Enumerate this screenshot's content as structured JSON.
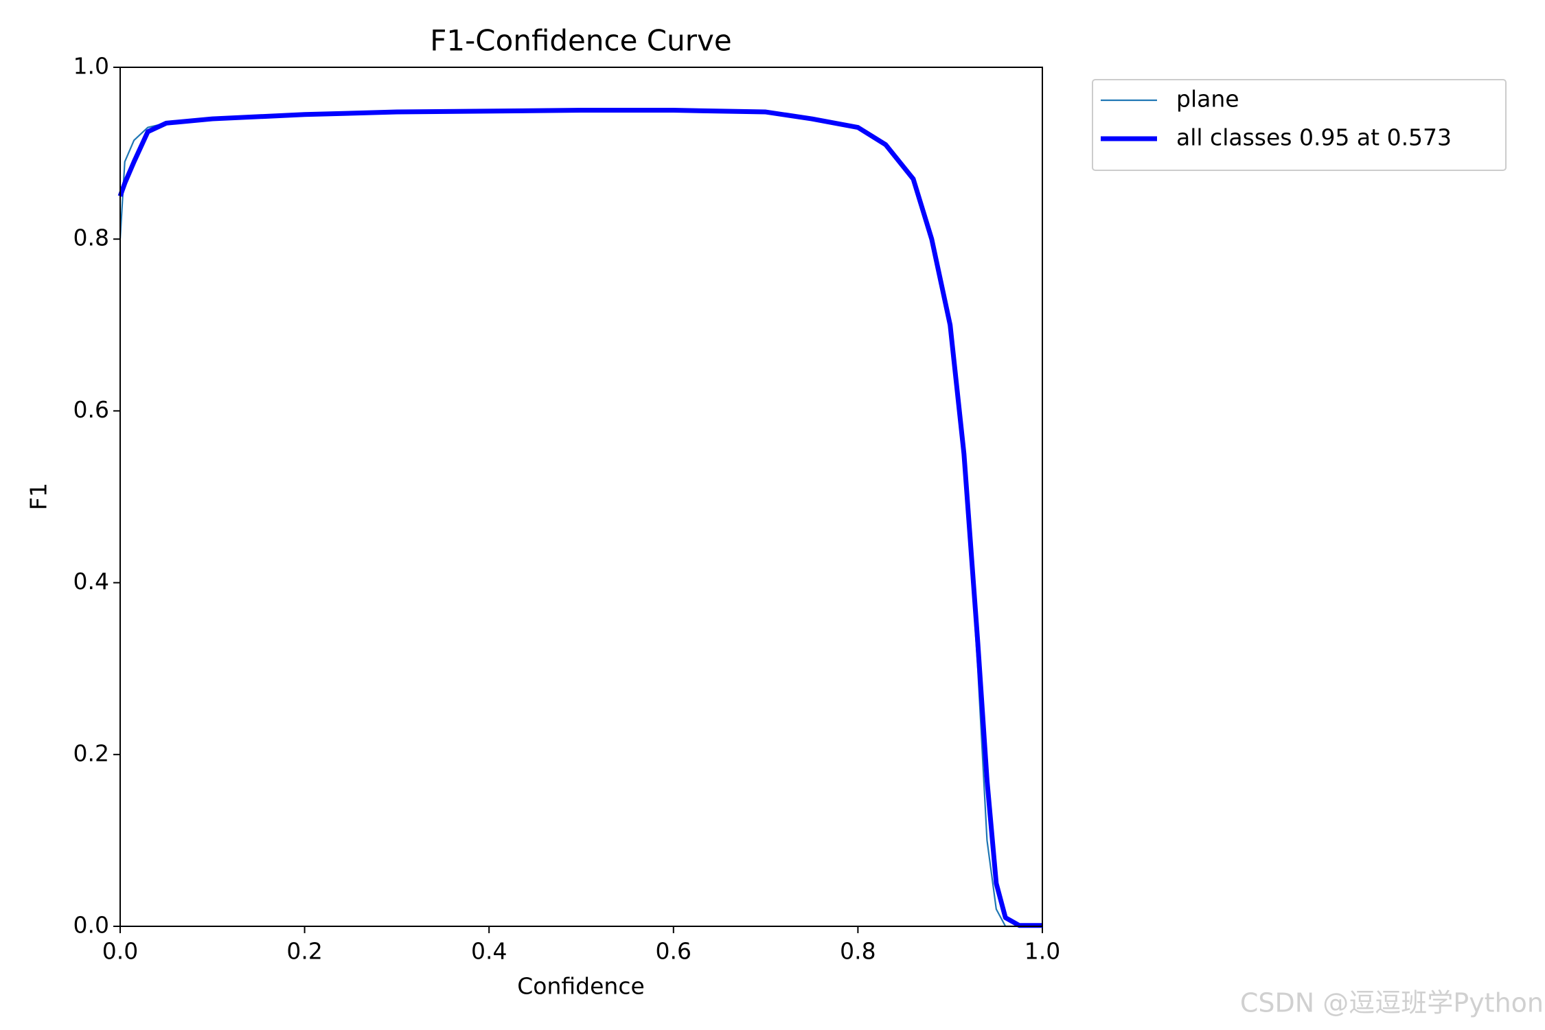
{
  "chart_data": {
    "type": "line",
    "title": "F1-Confidence Curve",
    "x_label": "Confidence",
    "y_label": "F1",
    "x": [
      0,
      0.005,
      0.015,
      0.03,
      0.05,
      0.1,
      0.2,
      0.3,
      0.5,
      0.6,
      0.7,
      0.75,
      0.8,
      0.83,
      0.86,
      0.88,
      0.9,
      0.915,
      0.93,
      0.94,
      0.95,
      0.96,
      0.975,
      1
    ],
    "series": [
      {
        "name": "plane",
        "color": "#1f77b4",
        "width": "thin",
        "values": [
          0.8,
          0.89,
          0.915,
          0.93,
          0.935,
          0.94,
          0.945,
          0.948,
          0.95,
          0.95,
          0.948,
          0.94,
          0.93,
          0.91,
          0.87,
          0.8,
          0.7,
          0.55,
          0.3,
          0.1,
          0.02,
          0,
          0,
          0
        ]
      },
      {
        "name": "all classes 0.95 at 0.573",
        "color": "#0000ff",
        "width": "thick",
        "values": [
          0.85,
          0.865,
          0.89,
          0.925,
          0.935,
          0.94,
          0.945,
          0.948,
          0.95,
          0.95,
          0.948,
          0.94,
          0.93,
          0.91,
          0.87,
          0.8,
          0.7,
          0.55,
          0.33,
          0.17,
          0.05,
          0.01,
          0.001,
          0.001
        ]
      }
    ],
    "xlim": [
      0,
      1
    ],
    "ylim": [
      0,
      1
    ],
    "xticks": [
      {
        "value": 0,
        "label": "0.0"
      },
      0.2,
      0.4,
      0.6,
      0.8,
      {
        "value": 1,
        "label": "1.0"
      }
    ],
    "yticks": [
      {
        "value": 0,
        "label": "0.0"
      },
      0.2,
      0.4,
      0.6,
      0.8,
      {
        "value": 1,
        "label": "1.0"
      }
    ],
    "grid": false,
    "legend": "outside upper right",
    "watermark": "CSDN @逗逗班学Python"
  }
}
